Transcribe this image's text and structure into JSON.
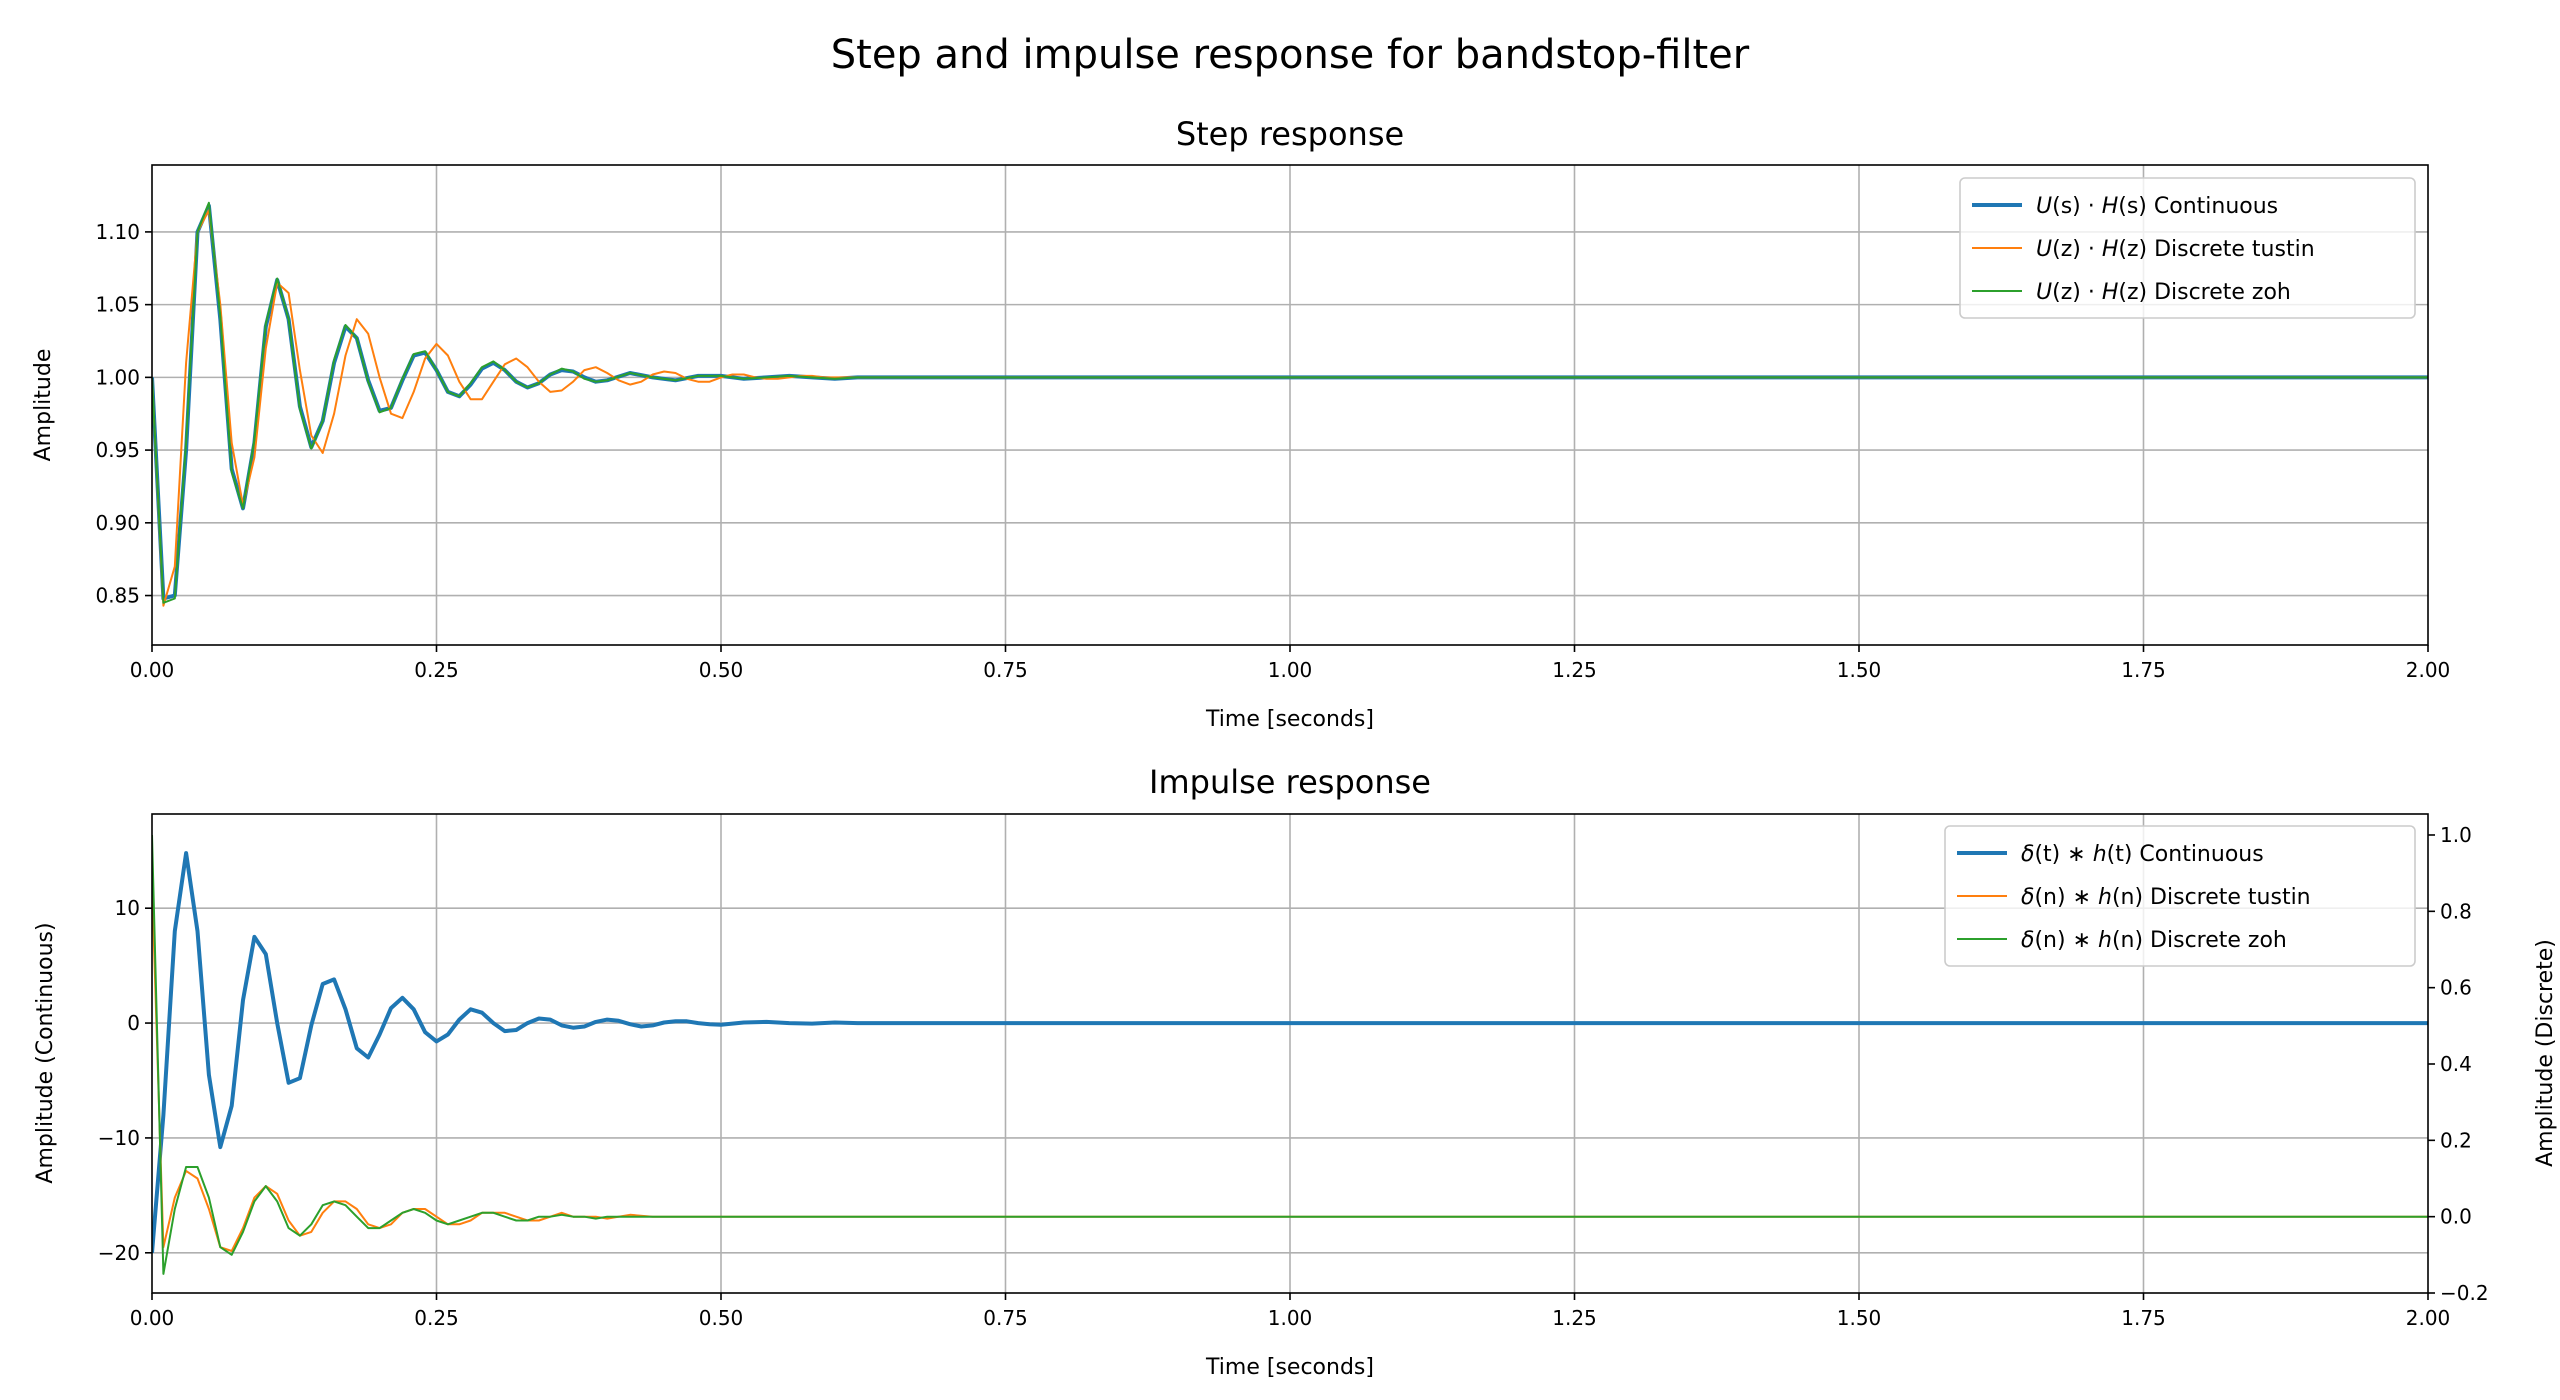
{
  "figure": {
    "title": "Step and impulse response for bandstop-filter"
  },
  "colors": {
    "continuous": "#1f77b4",
    "tustin": "#ff7f0e",
    "zoh": "#2ca02c",
    "grid": "#b0b0b0"
  },
  "chart_data": [
    {
      "type": "line",
      "title": "Step response",
      "xlabel": "Time [seconds]",
      "ylabel": "Amplitude",
      "xlim": [
        0,
        2
      ],
      "ylim": [
        0.816,
        1.146
      ],
      "xticks": [
        0,
        0.25,
        0.5,
        0.75,
        1.0,
        1.25,
        1.5,
        1.75,
        2.0
      ],
      "xtick_labels": [
        "0.00",
        "0.25",
        "0.50",
        "0.75",
        "1.00",
        "1.25",
        "1.50",
        "1.75",
        "2.00"
      ],
      "yticks": [
        0.85,
        0.9,
        0.95,
        1.0,
        1.05,
        1.1
      ],
      "ytick_labels": [
        "0.85",
        "0.90",
        "0.95",
        "1.00",
        "1.05",
        "1.10"
      ],
      "grid": true,
      "legend_position": "top-right",
      "series": [
        {
          "name": "U(s) · H(s) Continuous",
          "legend_parts": [
            "U",
            "(s) · ",
            "H",
            "(s) Continuous"
          ],
          "color": "#1f77b4",
          "width": 4,
          "x": [
            0,
            0.01,
            0.02,
            0.03,
            0.04,
            0.05,
            0.06,
            0.07,
            0.08,
            0.09,
            0.1,
            0.11,
            0.12,
            0.13,
            0.14,
            0.15,
            0.16,
            0.17,
            0.18,
            0.19,
            0.2,
            0.21,
            0.22,
            0.23,
            0.24,
            0.25,
            0.26,
            0.27,
            0.28,
            0.29,
            0.3,
            0.31,
            0.32,
            0.33,
            0.34,
            0.35,
            0.36,
            0.37,
            0.38,
            0.39,
            0.4,
            0.42,
            0.44,
            0.46,
            0.48,
            0.5,
            0.52,
            0.54,
            0.56,
            0.58,
            0.6,
            0.62,
            0.64,
            0.66,
            0.68,
            0.7,
            0.75,
            0.8,
            1.0,
            1.5,
            2.0
          ],
          "y": [
            1.0,
            0.848,
            0.85,
            0.95,
            1.1,
            1.118,
            1.04,
            0.937,
            0.91,
            0.955,
            1.035,
            1.067,
            1.04,
            0.98,
            0.952,
            0.97,
            1.01,
            1.035,
            1.027,
            0.998,
            0.977,
            0.979,
            0.998,
            1.015,
            1.017,
            1.005,
            0.99,
            0.987,
            0.995,
            1.006,
            1.01,
            1.005,
            0.997,
            0.993,
            0.996,
            1.002,
            1.005,
            1.004,
            1.0,
            0.997,
            0.998,
            1.003,
            1.0,
            0.998,
            1.001,
            1.001,
            0.999,
            1.0,
            1.001,
            1.0,
            0.999,
            1.0,
            1.0,
            1.0,
            1.0,
            1.0,
            1.0,
            1.0,
            1.0,
            1.0,
            1.0
          ]
        },
        {
          "name": "U(z) · H(z) Discrete tustin",
          "legend_parts": [
            "U",
            "(z) · ",
            "H",
            "(z) Discrete tustin"
          ],
          "color": "#ff7f0e",
          "width": 2,
          "x": [
            0,
            0.01,
            0.02,
            0.03,
            0.04,
            0.05,
            0.06,
            0.07,
            0.08,
            0.09,
            0.1,
            0.11,
            0.12,
            0.13,
            0.14,
            0.15,
            0.16,
            0.17,
            0.18,
            0.19,
            0.2,
            0.21,
            0.22,
            0.23,
            0.24,
            0.25,
            0.26,
            0.27,
            0.28,
            0.29,
            0.3,
            0.31,
            0.32,
            0.33,
            0.34,
            0.35,
            0.36,
            0.37,
            0.38,
            0.39,
            0.4,
            0.41,
            0.42,
            0.43,
            0.44,
            0.45,
            0.46,
            0.47,
            0.48,
            0.49,
            0.5,
            0.51,
            0.52,
            0.53,
            0.54,
            0.55,
            0.56,
            0.57,
            0.58,
            0.59,
            0.6,
            0.62,
            0.64,
            0.66,
            0.68,
            0.7,
            0.75,
            0.8,
            1.0,
            1.5,
            2.0
          ],
          "y": [
            1.0,
            0.843,
            0.87,
            1.01,
            1.1,
            1.115,
            1.05,
            0.955,
            0.912,
            0.945,
            1.02,
            1.065,
            1.058,
            1.005,
            0.96,
            0.948,
            0.975,
            1.015,
            1.04,
            1.03,
            1.0,
            0.975,
            0.972,
            0.99,
            1.013,
            1.023,
            1.015,
            0.997,
            0.985,
            0.985,
            0.997,
            1.009,
            1.013,
            1.007,
            0.997,
            0.99,
            0.991,
            0.997,
            1.005,
            1.007,
            1.003,
            0.998,
            0.995,
            0.997,
            1.002,
            1.004,
            1.003,
            0.999,
            0.997,
            0.997,
            1.0,
            1.002,
            1.002,
            1.0,
            0.999,
            0.999,
            1.0,
            1.001,
            1.001,
            1.0,
            1.0,
            1.0,
            1.0,
            1.0,
            1.0,
            1.0,
            1.0,
            1.0,
            1.0,
            1.0,
            1.0
          ]
        },
        {
          "name": "U(z) · H(z) Discrete zoh",
          "legend_parts": [
            "U",
            "(z) · ",
            "H",
            "(z) Discrete zoh"
          ],
          "color": "#2ca02c",
          "width": 2,
          "x": [
            0,
            0.01,
            0.02,
            0.03,
            0.04,
            0.05,
            0.06,
            0.07,
            0.08,
            0.09,
            0.1,
            0.11,
            0.12,
            0.13,
            0.14,
            0.15,
            0.16,
            0.17,
            0.18,
            0.19,
            0.2,
            0.21,
            0.22,
            0.23,
            0.24,
            0.25,
            0.26,
            0.27,
            0.28,
            0.29,
            0.3,
            0.31,
            0.32,
            0.33,
            0.34,
            0.35,
            0.36,
            0.37,
            0.38,
            0.39,
            0.4,
            0.42,
            0.44,
            0.46,
            0.48,
            0.5,
            0.52,
            0.54,
            0.56,
            0.58,
            0.6,
            0.62,
            0.64,
            0.66,
            0.68,
            0.7,
            0.75,
            0.8,
            1.0,
            1.5,
            2.0
          ],
          "y": [
            1.0,
            0.845,
            0.848,
            0.955,
            1.1,
            1.12,
            1.042,
            0.935,
            0.91,
            0.957,
            1.037,
            1.068,
            1.04,
            0.978,
            0.951,
            0.97,
            1.012,
            1.036,
            1.027,
            0.997,
            0.976,
            0.979,
            0.999,
            1.016,
            1.018,
            1.005,
            0.99,
            0.987,
            0.996,
            1.007,
            1.011,
            1.005,
            0.997,
            0.993,
            0.996,
            1.002,
            1.006,
            1.004,
            0.999,
            0.997,
            0.998,
            1.003,
            1.0,
            0.998,
            1.001,
            1.001,
            0.999,
            1.0,
            1.001,
            1.0,
            0.999,
            1.0,
            1.0,
            1.0,
            1.0,
            1.0,
            1.0,
            1.0,
            1.0,
            1.0,
            1.0
          ]
        }
      ]
    },
    {
      "type": "line",
      "title": "Impulse response",
      "xlabel": "Time [seconds]",
      "ylabel": "Amplitude (Continuous)",
      "ylabel_right": "Amplitude (Discrete)",
      "xlim": [
        0,
        2
      ],
      "ylim": [
        -23.5,
        18.2
      ],
      "ylim_right": [
        -0.2,
        1.055
      ],
      "xticks": [
        0,
        0.25,
        0.5,
        0.75,
        1.0,
        1.25,
        1.5,
        1.75,
        2.0
      ],
      "xtick_labels": [
        "0.00",
        "0.25",
        "0.50",
        "0.75",
        "1.00",
        "1.25",
        "1.50",
        "1.75",
        "2.00"
      ],
      "yticks": [
        -20,
        -10,
        0,
        10
      ],
      "ytick_labels": [
        "−20",
        "−10",
        "0",
        "10"
      ],
      "yticks_right": [
        -0.2,
        0.0,
        0.2,
        0.4,
        0.6,
        0.8,
        1.0
      ],
      "ytick_labels_right": [
        "−0.2",
        "0.0",
        "0.2",
        "0.4",
        "0.6",
        "0.8",
        "1.0"
      ],
      "grid": true,
      "legend_position": "top-right",
      "series": [
        {
          "name": "δ(t) ∗ h(t) Continuous",
          "legend_parts": [
            "δ",
            "(t) ∗ ",
            "h",
            "(t) Continuous"
          ],
          "axis": "left",
          "color": "#1f77b4",
          "width": 4,
          "x": [
            0,
            0.01,
            0.02,
            0.03,
            0.04,
            0.05,
            0.06,
            0.07,
            0.08,
            0.09,
            0.1,
            0.11,
            0.12,
            0.13,
            0.14,
            0.15,
            0.16,
            0.17,
            0.18,
            0.19,
            0.2,
            0.21,
            0.22,
            0.23,
            0.24,
            0.25,
            0.26,
            0.27,
            0.28,
            0.29,
            0.3,
            0.31,
            0.32,
            0.33,
            0.34,
            0.35,
            0.36,
            0.37,
            0.38,
            0.39,
            0.4,
            0.41,
            0.42,
            0.43,
            0.44,
            0.45,
            0.46,
            0.47,
            0.48,
            0.49,
            0.5,
            0.52,
            0.54,
            0.56,
            0.58,
            0.6,
            0.62,
            0.64,
            0.66,
            0.7,
            0.75,
            0.8,
            1.0,
            1.5,
            2.0
          ],
          "y": [
            -20,
            -8,
            8,
            14.8,
            8,
            -4.5,
            -10.8,
            -7.2,
            2.0,
            7.5,
            6.0,
            0.0,
            -5.2,
            -4.8,
            -0.2,
            3.4,
            3.8,
            1.2,
            -2.2,
            -3.0,
            -1.0,
            1.3,
            2.2,
            1.2,
            -0.8,
            -1.6,
            -1.0,
            0.3,
            1.2,
            0.9,
            0.0,
            -0.7,
            -0.6,
            0.0,
            0.4,
            0.3,
            -0.2,
            -0.4,
            -0.3,
            0.1,
            0.3,
            0.2,
            -0.1,
            -0.3,
            -0.2,
            0.05,
            0.15,
            0.15,
            0.0,
            -0.1,
            -0.15,
            0.05,
            0.1,
            0.0,
            -0.05,
            0.05,
            0.0,
            0.0,
            0.0,
            0.0,
            0.0,
            0.0,
            0.0,
            0.0,
            0.0
          ]
        },
        {
          "name": "δ(n) ∗ h(n) Discrete tustin",
          "legend_parts": [
            "δ",
            "(n) ∗ ",
            "h",
            "(n) Discrete tustin"
          ],
          "axis": "right",
          "color": "#ff7f0e",
          "width": 2,
          "x": [
            0,
            0.01,
            0.02,
            0.03,
            0.04,
            0.05,
            0.06,
            0.07,
            0.08,
            0.09,
            0.1,
            0.11,
            0.12,
            0.13,
            0.14,
            0.15,
            0.16,
            0.17,
            0.18,
            0.19,
            0.2,
            0.21,
            0.22,
            0.23,
            0.24,
            0.25,
            0.26,
            0.27,
            0.28,
            0.29,
            0.3,
            0.31,
            0.32,
            0.33,
            0.34,
            0.35,
            0.36,
            0.37,
            0.38,
            0.39,
            0.4,
            0.42,
            0.44,
            0.46,
            0.48,
            0.5,
            0.55,
            0.6,
            0.7,
            0.8,
            1.0,
            1.5,
            2.0
          ],
          "y": [
            0.88,
            -0.08,
            0.05,
            0.12,
            0.1,
            0.02,
            -0.08,
            -0.09,
            -0.03,
            0.05,
            0.08,
            0.06,
            -0.01,
            -0.05,
            -0.04,
            0.01,
            0.04,
            0.04,
            0.02,
            -0.02,
            -0.03,
            -0.02,
            0.01,
            0.02,
            0.02,
            0.0,
            -0.02,
            -0.02,
            -0.01,
            0.01,
            0.01,
            0.01,
            0.0,
            -0.01,
            -0.01,
            0.0,
            0.01,
            0.0,
            0.0,
            0.0,
            -0.005,
            0.005,
            0.0,
            0.0,
            0.0,
            0.0,
            0.0,
            0.0,
            0.0,
            0.0,
            0.0,
            0.0,
            0.0
          ]
        },
        {
          "name": "δ(n) ∗ h(n) Discrete zoh",
          "legend_parts": [
            "δ",
            "(n) ∗ ",
            "h",
            "(n) Discrete zoh"
          ],
          "axis": "right",
          "color": "#2ca02c",
          "width": 2,
          "x": [
            0,
            0.01,
            0.02,
            0.03,
            0.04,
            0.05,
            0.06,
            0.07,
            0.08,
            0.09,
            0.1,
            0.11,
            0.12,
            0.13,
            0.14,
            0.15,
            0.16,
            0.17,
            0.18,
            0.19,
            0.2,
            0.21,
            0.22,
            0.23,
            0.24,
            0.25,
            0.26,
            0.27,
            0.28,
            0.29,
            0.3,
            0.31,
            0.32,
            0.33,
            0.34,
            0.35,
            0.36,
            0.37,
            0.38,
            0.39,
            0.4,
            0.42,
            0.44,
            0.46,
            0.48,
            0.5,
            0.55,
            0.6,
            0.7,
            0.8,
            1.0,
            1.5,
            2.0
          ],
          "y": [
            1.0,
            -0.15,
            0.02,
            0.13,
            0.13,
            0.05,
            -0.08,
            -0.1,
            -0.04,
            0.04,
            0.08,
            0.04,
            -0.03,
            -0.05,
            -0.02,
            0.03,
            0.04,
            0.03,
            0.0,
            -0.03,
            -0.03,
            -0.01,
            0.01,
            0.02,
            0.01,
            -0.01,
            -0.02,
            -0.01,
            0.0,
            0.01,
            0.01,
            0.0,
            -0.01,
            -0.01,
            0.0,
            0.0,
            0.005,
            0.0,
            0.0,
            -0.005,
            0.0,
            0.0,
            0.0,
            0.0,
            0.0,
            0.0,
            0.0,
            0.0,
            0.0,
            0.0,
            0.0,
            0.0,
            0.0
          ]
        }
      ]
    }
  ]
}
